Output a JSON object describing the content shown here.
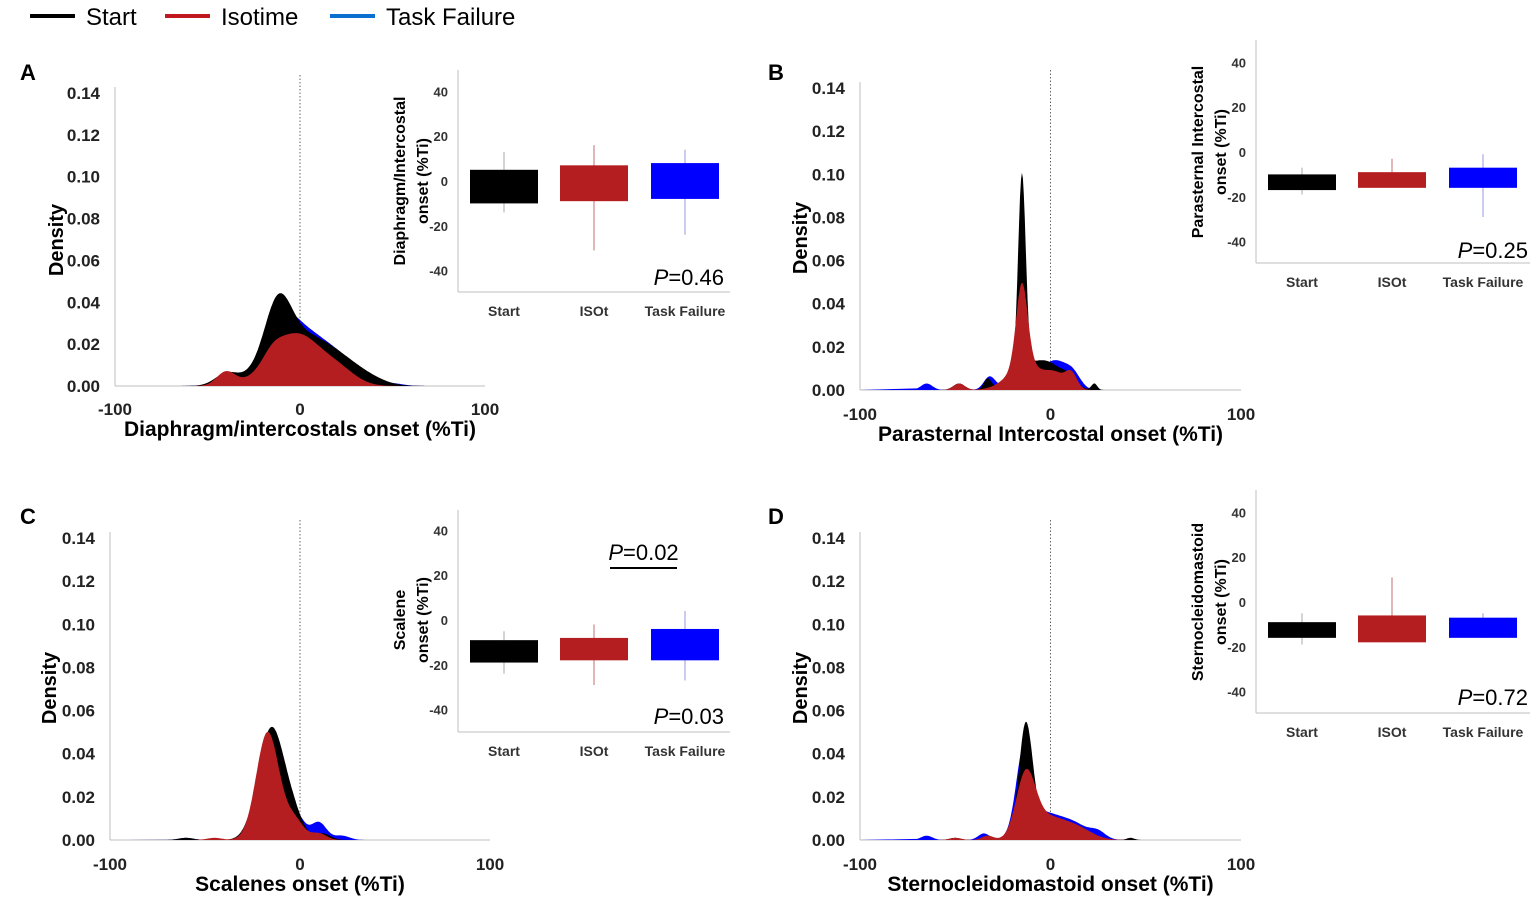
{
  "legend": [
    {
      "name": "Start",
      "color": "#000000"
    },
    {
      "name": "Isotime",
      "color": "#c0181c"
    },
    {
      "name": "Task Failure",
      "color": "#0b6fcf"
    }
  ],
  "colors": {
    "start": "#000000",
    "iso": "#b41e20",
    "failure": "#0000ff"
  },
  "chart_data": [
    {
      "panel": "A",
      "type": "area",
      "title": "",
      "xlabel": "Diaphragm/intercostals onset (%Ti)",
      "ylabel": "Density",
      "xlim": [
        -100,
        100
      ],
      "ylim": [
        0,
        0.14
      ],
      "x_ticks": [
        "-100",
        "0",
        "100"
      ],
      "y_ticks": [
        "0.00",
        "0.02",
        "0.04",
        "0.06",
        "0.08",
        "0.10",
        "0.12",
        "0.14"
      ],
      "series": [
        {
          "name": "Task Failure",
          "key": "failure",
          "peaks": [
            [
              -40,
              0.005,
              6
            ],
            [
              -10,
              0.012,
              7
            ],
            [
              0,
              0.027,
              16
            ],
            [
              25,
              0.006,
              10
            ],
            [
              50,
              0.001,
              6
            ]
          ]
        },
        {
          "name": "Start",
          "key": "start",
          "peaks": [
            [
              -40,
              0.005,
              6
            ],
            [
              -12,
              0.025,
              7
            ],
            [
              0,
              0.024,
              17
            ],
            [
              25,
              0.006,
              12
            ],
            [
              40,
              0.001,
              8
            ]
          ]
        },
        {
          "name": "Isotime",
          "key": "iso",
          "peaks": [
            [
              -40,
              0.0065,
              5
            ],
            [
              -15,
              0.004,
              5
            ],
            [
              -2,
              0.025,
              14
            ],
            [
              22,
              0.005,
              9
            ]
          ]
        }
      ],
      "inset": {
        "type": "bar",
        "categories": [
          "Start",
          "ISOt",
          "Task Failure"
        ],
        "ylabel_lines": [
          "Diaphragm/Intercostal",
          "onset (%Ti)"
        ],
        "y_ticks": [
          "40",
          "20",
          "0",
          "-20",
          "-40"
        ],
        "ylim": [
          -45,
          50
        ],
        "bars": [
          {
            "key": "start",
            "top": 5,
            "bottom": -10,
            "whisker_top": 13,
            "whisker_bottom": -14
          },
          {
            "key": "iso",
            "top": 7,
            "bottom": -9,
            "whisker_top": 16,
            "whisker_bottom": -31
          },
          {
            "key": "failure",
            "top": 8,
            "bottom": -8,
            "whisker_top": 14,
            "whisker_bottom": -24
          }
        ],
        "pvalue": "=0.46",
        "pvalue_letter": "P"
      }
    },
    {
      "panel": "B",
      "type": "area",
      "title": "",
      "xlabel": "Parasternal Intercostal onset (%Ti)",
      "ylabel": "Density",
      "xlim": [
        -100,
        100
      ],
      "ylim": [
        0,
        0.14
      ],
      "x_ticks": [
        "-100",
        "0",
        "100"
      ],
      "y_ticks": [
        "0.00",
        "0.02",
        "0.04",
        "0.06",
        "0.08",
        "0.10",
        "0.12",
        "0.14"
      ],
      "series": [
        {
          "name": "Task Failure",
          "key": "failure",
          "peaks": [
            [
              -65,
              0.003,
              3
            ],
            [
              -48,
              0.003,
              3
            ],
            [
              -32,
              0.006,
              3
            ],
            [
              -15,
              0.057,
              2.5
            ],
            [
              -12,
              0.008,
              8
            ],
            [
              3,
              0.012,
              6
            ],
            [
              12,
              0.006,
              4
            ]
          ]
        },
        {
          "name": "Start",
          "key": "start",
          "peaks": [
            [
              -48,
              0.003,
              3
            ],
            [
              -33,
              0.005,
              2
            ],
            [
              -15,
              0.09,
              2
            ],
            [
              -13,
              0.01,
              8
            ],
            [
              0,
              0.01,
              7
            ],
            [
              10,
              0.004,
              4
            ],
            [
              23,
              0.003,
              1.5
            ]
          ]
        },
        {
          "name": "Isotime",
          "key": "iso",
          "peaks": [
            [
              -48,
              0.003,
              3
            ],
            [
              -15,
              0.038,
              3
            ],
            [
              -13,
              0.012,
              9
            ],
            [
              3,
              0.006,
              5
            ],
            [
              11,
              0.007,
              3
            ]
          ]
        }
      ],
      "inset": {
        "type": "bar",
        "categories": [
          "Start",
          "ISOt",
          "Task Failure"
        ],
        "ylabel_lines": [
          "Parasternal Intercostal",
          "onset (%Ti)"
        ],
        "y_ticks": [
          "40",
          "20",
          "0",
          "-20",
          "-40"
        ],
        "ylim": [
          -45,
          50
        ],
        "bars": [
          {
            "key": "start",
            "top": -10,
            "bottom": -17,
            "whisker_top": -7,
            "whisker_bottom": -19
          },
          {
            "key": "iso",
            "top": -9,
            "bottom": -16,
            "whisker_top": -3,
            "whisker_bottom": -16
          },
          {
            "key": "failure",
            "top": -7,
            "bottom": -16,
            "whisker_top": -1,
            "whisker_bottom": -29
          }
        ],
        "pvalue": "=0.25",
        "pvalue_letter": "P"
      }
    },
    {
      "panel": "C",
      "type": "area",
      "title": "",
      "xlabel": "Scalenes onset (%Ti)",
      "ylabel": "Density",
      "xlim": [
        -100,
        100
      ],
      "ylim": [
        0,
        0.14
      ],
      "x_ticks": [
        "-100",
        "0",
        "100"
      ],
      "y_ticks": [
        "0.00",
        "0.02",
        "0.04",
        "0.06",
        "0.08",
        "0.10",
        "0.12",
        "0.14"
      ],
      "series": [
        {
          "name": "Task Failure",
          "key": "failure",
          "peaks": [
            [
              -60,
              0.001,
              4
            ],
            [
              -16,
              0.048,
              6
            ],
            [
              -3,
              0.012,
              5
            ],
            [
              10,
              0.008,
              4
            ],
            [
              22,
              0.002,
              4
            ]
          ]
        },
        {
          "name": "Start",
          "key": "start",
          "peaks": [
            [
              -60,
              0.001,
              4
            ],
            [
              -15,
              0.052,
              7
            ],
            [
              -3,
              0.008,
              5
            ],
            [
              12,
              0.003,
              4
            ]
          ]
        },
        {
          "name": "Isotime",
          "key": "iso",
          "peaks": [
            [
              -45,
              0.001,
              4
            ],
            [
              -17,
              0.05,
              6
            ],
            [
              -3,
              0.009,
              5
            ],
            [
              10,
              0.003,
              4
            ]
          ]
        }
      ],
      "inset": {
        "type": "bar",
        "categories": [
          "Start",
          "ISOt",
          "Task Failure"
        ],
        "ylabel_lines": [
          "Scalene",
          "onset (%Ti)"
        ],
        "y_ticks": [
          "40",
          "20",
          "0",
          "-20",
          "-40"
        ],
        "ylim": [
          -45,
          50
        ],
        "bars": [
          {
            "key": "start",
            "top": -9,
            "bottom": -19,
            "whisker_top": -5,
            "whisker_bottom": -24
          },
          {
            "key": "iso",
            "top": -8,
            "bottom": -18,
            "whisker_top": -2,
            "whisker_bottom": -29
          },
          {
            "key": "failure",
            "top": -4,
            "bottom": -18,
            "whisker_top": 4,
            "whisker_bottom": -27
          }
        ],
        "pvalue": "=0.03",
        "pvalue_letter": "P",
        "comparison": {
          "label": "=0.02",
          "letter": "P",
          "from": "ISOt",
          "to": "Task Failure"
        }
      }
    },
    {
      "panel": "D",
      "type": "area",
      "title": "",
      "xlabel": "Sternocleidomastoid onset (%Ti)",
      "ylabel": "Density",
      "xlim": [
        -100,
        100
      ],
      "ylim": [
        0,
        0.14
      ],
      "x_ticks": [
        "-100",
        "0",
        "100"
      ],
      "y_ticks": [
        "0.00",
        "0.02",
        "0.04",
        "0.06",
        "0.08",
        "0.10",
        "0.12",
        "0.14"
      ],
      "series": [
        {
          "name": "Task Failure",
          "key": "failure",
          "peaks": [
            [
              -65,
              0.002,
              3
            ],
            [
              -35,
              0.003,
              3
            ],
            [
              -14,
              0.037,
              4
            ],
            [
              -5,
              0.012,
              9
            ],
            [
              12,
              0.007,
              8
            ],
            [
              25,
              0.003,
              4
            ]
          ]
        },
        {
          "name": "Start",
          "key": "start",
          "peaks": [
            [
              -50,
              0.001,
              3
            ],
            [
              -13,
              0.048,
              3.5
            ],
            [
              -5,
              0.01,
              9
            ],
            [
              12,
              0.006,
              8
            ],
            [
              42,
              0.001,
              2
            ]
          ]
        },
        {
          "name": "Isotime",
          "key": "iso",
          "peaks": [
            [
              -50,
              0.001,
              3
            ],
            [
              -33,
              0.002,
              3
            ],
            [
              -13,
              0.028,
              5
            ],
            [
              -2,
              0.01,
              9
            ],
            [
              14,
              0.005,
              8
            ]
          ]
        }
      ],
      "inset": {
        "type": "bar",
        "categories": [
          "Start",
          "ISOt",
          "Task Failure"
        ],
        "ylabel_lines": [
          "Sternocleidomastoid",
          "onset (%Ti)"
        ],
        "y_ticks": [
          "40",
          "20",
          "0",
          "-20",
          "-40"
        ],
        "ylim": [
          -45,
          50
        ],
        "bars": [
          {
            "key": "start",
            "top": -9,
            "bottom": -16,
            "whisker_top": -5,
            "whisker_bottom": -19
          },
          {
            "key": "iso",
            "top": -6,
            "bottom": -18,
            "whisker_top": 11,
            "whisker_bottom": -18
          },
          {
            "key": "failure",
            "top": -7,
            "bottom": -16,
            "whisker_top": -5,
            "whisker_bottom": -16
          }
        ],
        "pvalue": "=0.72",
        "pvalue_letter": "P"
      }
    }
  ]
}
